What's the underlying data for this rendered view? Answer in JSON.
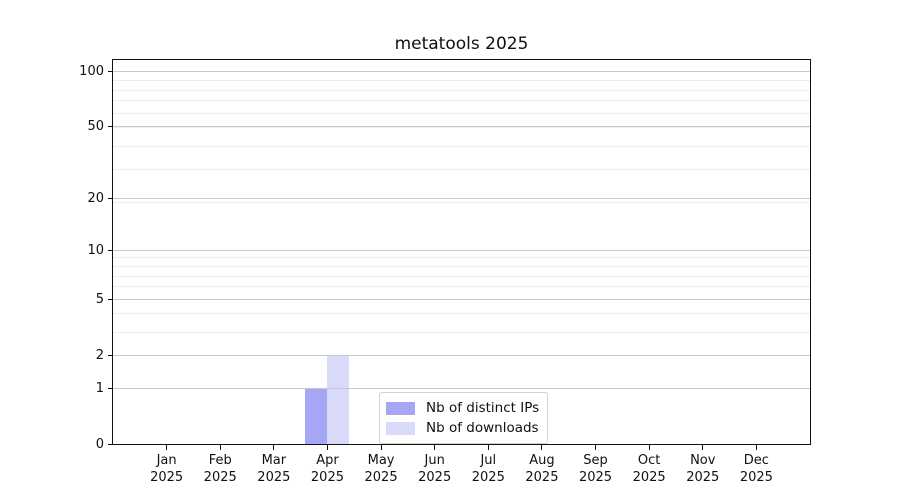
{
  "chart_data": {
    "type": "bar",
    "title": "metatools 2025",
    "categories": [
      "Jan",
      "Feb",
      "Mar",
      "Apr",
      "May",
      "Jun",
      "Jul",
      "Aug",
      "Sep",
      "Oct",
      "Nov",
      "Dec"
    ],
    "x_year": "2025",
    "series": [
      {
        "name": "Nb of distinct IPs",
        "color": "#a6a6f6",
        "values": [
          0,
          0,
          0,
          1,
          0,
          0,
          0,
          0,
          0,
          0,
          0,
          0
        ]
      },
      {
        "name": "Nb of downloads",
        "color": "#d9d9fa",
        "values": [
          0,
          0,
          0,
          2,
          0,
          0,
          0,
          0,
          0,
          0,
          0,
          0
        ]
      }
    ],
    "y_axis": {
      "scale": "log1p",
      "major_ticks": [
        0,
        1,
        2,
        5,
        10,
        20,
        50,
        100
      ],
      "minor_ticks": [
        3,
        4,
        6,
        7,
        8,
        9,
        19,
        29,
        39,
        49,
        59,
        69,
        79,
        89
      ],
      "max": 115
    },
    "xlabel": "",
    "ylabel": "",
    "grid": "horizontal",
    "legend_position": "bottom-center",
    "colors": {
      "major_grid": "#c9c9c9",
      "minor_grid": "#ededed",
      "axis": "#111111"
    }
  }
}
